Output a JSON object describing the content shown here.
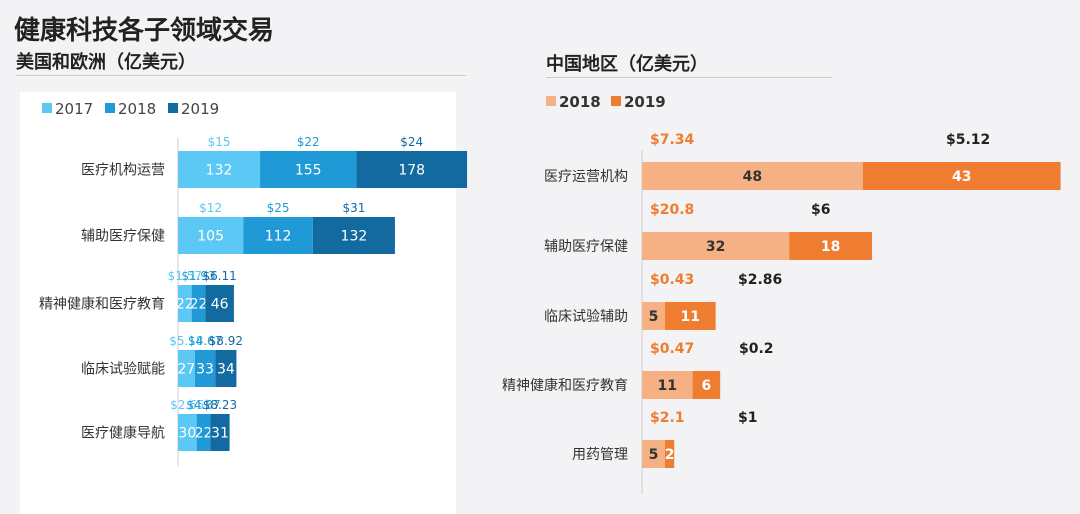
{
  "page": {
    "title": "健康科技各子领域交易",
    "left_subtitle": "美国和欧洲（亿美元）",
    "right_subtitle": "中国地区（亿美元）"
  },
  "colors": {
    "c2017": "#5bc8f5",
    "c2018_us": "#1f9ad6",
    "c2019_us": "#136aa1",
    "c2018_cn": "#f5b183",
    "c2019_cn": "#ee7d31",
    "label_2017": "#5bc8f5",
    "label_2018_us": "#1f9ad6",
    "label_2019_us": "#136aa1",
    "label_2018_cn": "#ee7d31",
    "label_2019_cn": "#222222"
  },
  "chart_data": [
    {
      "id": "us-eu",
      "type": "bar",
      "orientation": "horizontal",
      "stacked": true,
      "title": "美国和欧洲（亿美元）",
      "legend": [
        "2017",
        "2018",
        "2019"
      ],
      "legend_position": "top-left",
      "categories": [
        "医疗机构运营",
        "辅助医疗保健",
        "精神健康和医疗教育",
        "临床试验赋能",
        "医疗健康导航"
      ],
      "series": [
        {
          "name": "2017",
          "values": [
            132,
            105,
            22,
            27,
            30
          ],
          "amounts": [
            "$15",
            "$12",
            "$1.57",
            "$5.18",
            "$2.65"
          ]
        },
        {
          "name": "2018",
          "values": [
            155,
            112,
            22,
            33,
            22
          ],
          "amounts": [
            "$22",
            "$25",
            "$1.93",
            "$4.67",
            "$4.87"
          ]
        },
        {
          "name": "2019",
          "values": [
            178,
            132,
            46,
            34,
            31
          ],
          "amounts": [
            "$24",
            "$31",
            "$6.11",
            "$8.92",
            "$8.23"
          ]
        }
      ]
    },
    {
      "id": "china",
      "type": "bar",
      "orientation": "horizontal",
      "stacked": true,
      "title": "中国地区（亿美元）",
      "legend": [
        "2018",
        "2019"
      ],
      "legend_position": "top-left",
      "categories": [
        "医疗运营机构",
        "辅助医疗保健",
        "临床试验辅助",
        "精神健康和医疗教育",
        "用药管理"
      ],
      "series": [
        {
          "name": "2018",
          "values": [
            48,
            32,
            5,
            11,
            5
          ],
          "amounts": [
            "$7.34",
            "$20.8",
            "$0.43",
            "$0.47",
            "$2.1"
          ]
        },
        {
          "name": "2019",
          "values": [
            43,
            18,
            11,
            6,
            2
          ],
          "amounts": [
            "$5.12",
            "$6",
            "$2.86",
            "$0.2",
            "$1"
          ]
        }
      ]
    }
  ]
}
